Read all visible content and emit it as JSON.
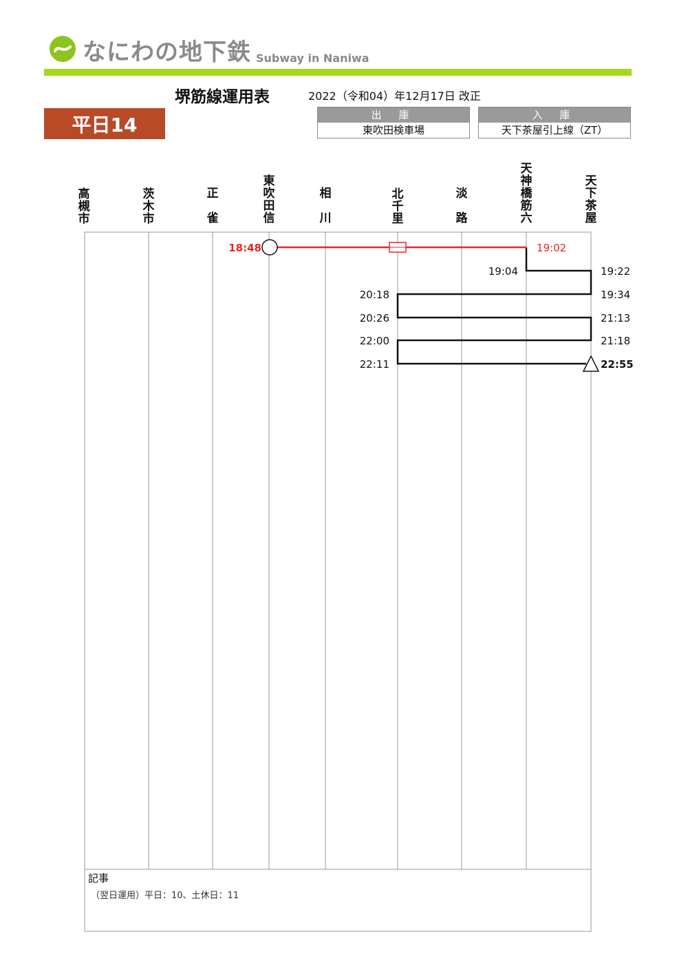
{
  "header": {
    "logo_text": "なにわの地下鉄",
    "logo_subtitle": "Subway in Naniwa",
    "line_title": "堺筋線運用表",
    "revision": "2022（令和04）年12月17日 改正",
    "day_badge": "平日14"
  },
  "depot": {
    "out_label": "出 庫",
    "out_value": "東吹田検車場",
    "in_label": "入 庫",
    "in_value": "天下茶屋引上線（ZT）"
  },
  "stations": [
    "高槻市",
    "茨木市",
    "正雀",
    "東吹田信",
    "相川",
    "北千里",
    "淡路",
    "天神橋筋六",
    "天下茶屋"
  ],
  "diagram": {
    "colors": {
      "deadhead": "#e8262a",
      "service": "#111111",
      "grid": "#9a9a9a"
    },
    "start_marker": "circle",
    "end_marker": "triangle",
    "deadhead_symbol": "rectangle",
    "times": {
      "t1848": "18:48",
      "t1902": "19:02",
      "t1904": "19:04",
      "t1922": "19:22",
      "t1934": "19:34",
      "t2018": "20:18",
      "t2026": "20:26",
      "t2113": "21:13",
      "t2118": "21:18",
      "t2200": "22:00",
      "t2211": "22:11",
      "t2255": "22:55"
    }
  },
  "notes": {
    "title": "記事",
    "body": "（翌日運用）平日：10、土休日：11"
  }
}
